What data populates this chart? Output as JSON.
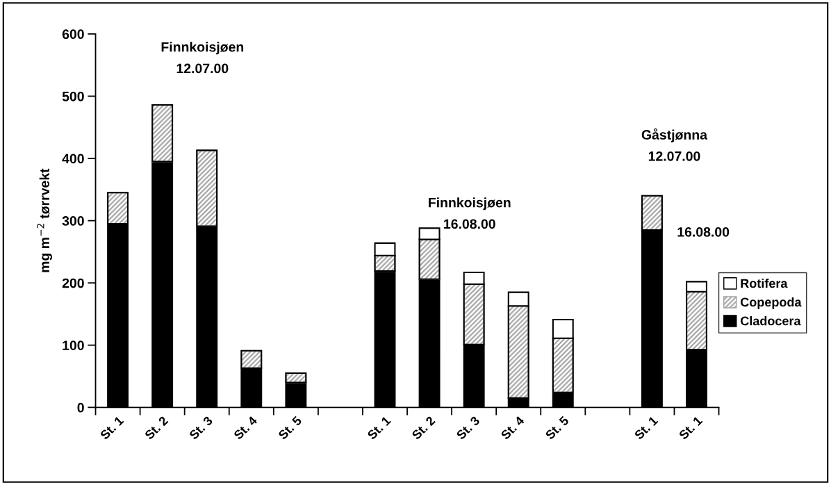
{
  "chart_data": {
    "type": "bar",
    "stacked": true,
    "ylabel": "mg m$^{−2}$ tørrvekt",
    "categories": [
      "St. 1",
      "St. 2",
      "St. 3",
      "St. 4",
      "St. 5",
      null,
      "St. 1",
      "St. 2",
      "St. 3",
      "St. 4",
      "St. 5",
      null,
      "St. 1",
      "St. 1"
    ],
    "series": [
      {
        "name": "Cladocera",
        "color": "#000000",
        "values": [
          295,
          395,
          291,
          63,
          40,
          null,
          219,
          206,
          101,
          15,
          24,
          null,
          285,
          93
        ]
      },
      {
        "name": "Copepoda",
        "color": "#a0a0a0",
        "values": [
          50,
          91,
          122,
          28,
          15,
          null,
          25,
          64,
          97,
          148,
          87,
          null,
          55,
          93
        ]
      },
      {
        "name": "Rotifera",
        "color": "#ffffff",
        "values": [
          0,
          0,
          0,
          0,
          0,
          null,
          20,
          18,
          19,
          22,
          30,
          null,
          0,
          16
        ]
      }
    ],
    "ylim": [
      0,
      600
    ],
    "yticks": [
      0,
      100,
      200,
      300,
      400,
      500,
      600
    ],
    "grid": false,
    "legend": "right",
    "annotations": [
      "Finnkoisjøen\n12.07.00",
      "Finnkoisjøen\n16.08.00",
      "Gåstjønna\n12.07.00",
      "16.08.00"
    ]
  }
}
